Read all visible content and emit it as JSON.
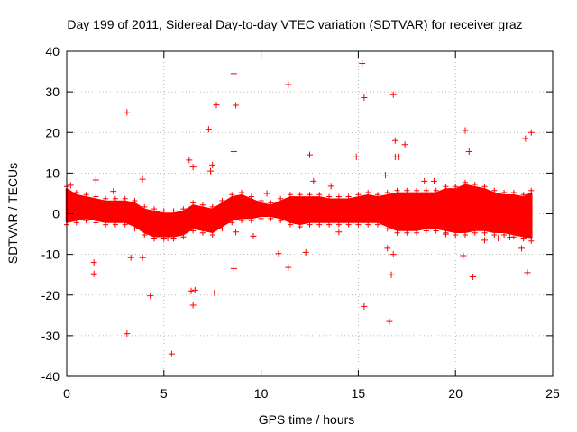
{
  "chart_data": {
    "type": "scatter",
    "title": "Day 199 of 2011, Sidereal Day-to-day VTEC variation (SDTVAR) for receiver graz",
    "xlabel": "GPS time / hours",
    "ylabel": "SDTVAR / TECUs",
    "xlim": [
      0,
      25
    ],
    "ylim": [
      -40,
      40
    ],
    "xticks": [
      "0",
      "5",
      "10",
      "15",
      "20",
      "25"
    ],
    "yticks": [
      "-40",
      "-30",
      "-20",
      "-10",
      "0",
      "10",
      "20",
      "30",
      "40"
    ],
    "grid": true,
    "marker": "+",
    "color": "#ff0000",
    "band_envelope": {
      "x": [
        0.0,
        0.5,
        1.0,
        1.5,
        2.0,
        2.5,
        3.0,
        3.5,
        4.0,
        4.5,
        5.0,
        5.5,
        6.0,
        6.5,
        7.0,
        7.5,
        8.0,
        8.5,
        9.0,
        9.5,
        10.0,
        10.5,
        11.0,
        11.5,
        12.0,
        12.5,
        13.0,
        13.5,
        14.0,
        14.5,
        15.0,
        15.5,
        16.0,
        16.5,
        17.0,
        17.5,
        18.0,
        18.5,
        19.0,
        19.5,
        20.0,
        20.5,
        21.0,
        21.5,
        22.0,
        22.5,
        23.0,
        23.5,
        23.9
      ],
      "upper": [
        6.0,
        4.5,
        4.0,
        3.5,
        3.0,
        3.0,
        3.0,
        2.5,
        1.0,
        0.5,
        0.0,
        0.0,
        0.5,
        2.0,
        1.5,
        1.0,
        2.5,
        4.0,
        4.5,
        3.5,
        2.5,
        2.0,
        3.0,
        4.0,
        4.0,
        4.0,
        4.0,
        3.5,
        3.5,
        3.5,
        4.0,
        4.5,
        4.0,
        4.5,
        5.0,
        5.0,
        5.0,
        5.0,
        5.0,
        6.0,
        6.0,
        7.0,
        6.5,
        6.0,
        5.0,
        4.5,
        4.5,
        4.0,
        5.0
      ],
      "lower": [
        -2.0,
        -1.5,
        -1.0,
        -1.5,
        -2.0,
        -2.0,
        -2.0,
        -3.0,
        -4.5,
        -5.5,
        -5.5,
        -5.5,
        -5.0,
        -3.5,
        -4.0,
        -4.5,
        -3.0,
        -1.5,
        -1.0,
        -1.0,
        -0.5,
        -0.5,
        -1.0,
        -2.0,
        -2.5,
        -2.0,
        -2.0,
        -2.0,
        -2.0,
        -2.0,
        -2.0,
        -2.0,
        -2.0,
        -3.0,
        -4.0,
        -4.0,
        -4.0,
        -3.5,
        -3.5,
        -4.0,
        -4.5,
        -4.5,
        -4.0,
        -4.0,
        -4.5,
        -4.5,
        -5.0,
        -5.5,
        -6.0
      ]
    },
    "outliers": {
      "x": [
        3.1,
        5.4,
        8.6,
        7.7,
        8.7,
        7.3,
        11.4,
        15.2,
        15.3,
        15.3,
        16.8,
        16.6,
        16.9,
        17.4,
        20.5,
        20.7,
        23.6,
        23.9,
        6.3,
        6.5,
        7.5,
        7.4,
        8.6,
        3.9,
        4.3,
        3.1,
        3.3,
        3.9,
        6.5,
        6.4,
        6.6,
        7.6,
        8.6,
        8.7,
        11.4,
        10.9,
        12.3,
        12.5,
        16.7,
        16.8,
        16.5,
        16.9,
        17.1,
        20.4,
        20.9,
        23.7,
        1.4,
        1.4,
        1.5,
        9.6,
        12.7,
        13.6,
        14.9,
        16.4,
        18.4,
        22.8,
        23.4,
        5.2,
        2.4,
        19.5,
        21.5,
        10.3,
        14.0,
        18.9,
        22.2,
        0.2
      ],
      "y": [
        25,
        -34.5,
        34.5,
        26.8,
        26.7,
        20.8,
        31.8,
        37,
        28.6,
        -22.8,
        29.3,
        -26.5,
        18,
        17,
        20.5,
        15.3,
        18.5,
        20,
        13.2,
        11.5,
        12,
        10.5,
        15.3,
        8.5,
        -20.2,
        -29.5,
        -10.8,
        -10.8,
        -22.5,
        -19,
        -18.8,
        -19.5,
        -13.5,
        -4.5,
        -13.2,
        -9.8,
        -9.5,
        14.5,
        -15,
        -10,
        -8.5,
        14,
        14,
        -10.3,
        -15.5,
        -14.5,
        -12,
        -14.8,
        8.3,
        -5.5,
        8,
        6.8,
        14,
        9.5,
        8,
        -5.8,
        -8.5,
        -6,
        5.5,
        -5,
        -6.5,
        5,
        -4.5,
        8,
        -6,
        7
      ]
    }
  }
}
